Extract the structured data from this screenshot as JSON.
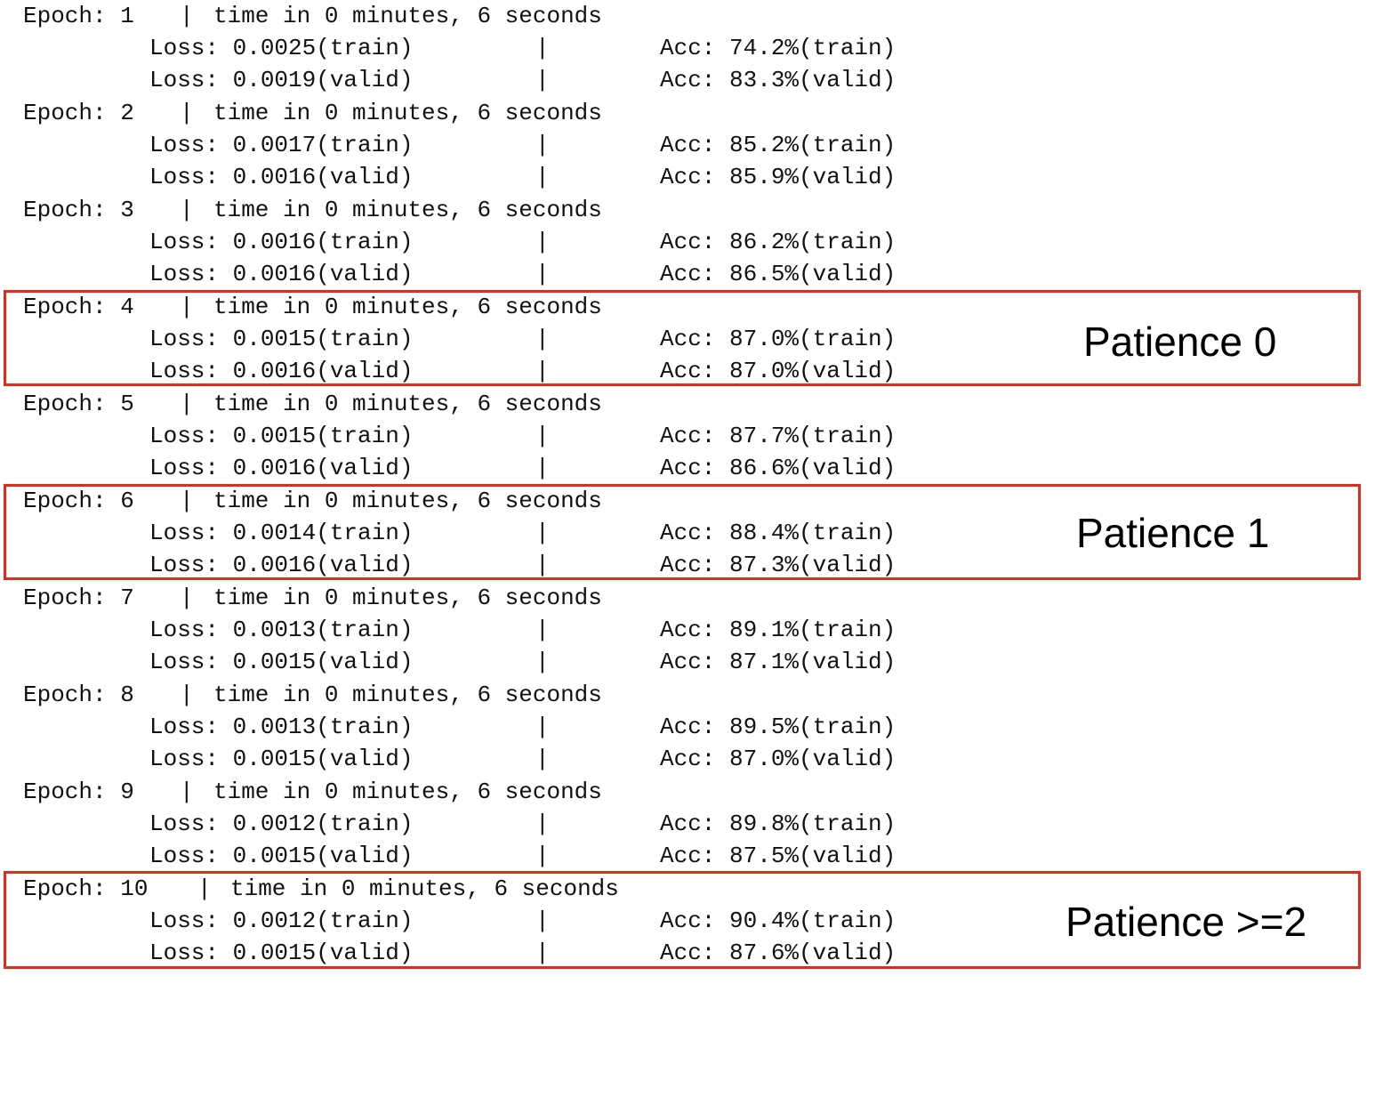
{
  "log": {
    "epochs": [
      {
        "epoch_line": "Epoch: 1",
        "time": "time in 0 minutes, 6 seconds",
        "loss_train": "Loss: 0.0025(train)",
        "acc_train": "Acc: 74.2%(train)",
        "loss_valid": "Loss: 0.0019(valid)",
        "acc_valid": "Acc: 83.3%(valid)"
      },
      {
        "epoch_line": "Epoch: 2",
        "time": "time in 0 minutes, 6 seconds",
        "loss_train": "Loss: 0.0017(train)",
        "acc_train": "Acc: 85.2%(train)",
        "loss_valid": "Loss: 0.0016(valid)",
        "acc_valid": "Acc: 85.9%(valid)"
      },
      {
        "epoch_line": "Epoch: 3",
        "time": "time in 0 minutes, 6 seconds",
        "loss_train": "Loss: 0.0016(train)",
        "acc_train": "Acc: 86.2%(train)",
        "loss_valid": "Loss: 0.0016(valid)",
        "acc_valid": "Acc: 86.5%(valid)"
      },
      {
        "epoch_line": "Epoch: 4",
        "time": "time in 0 minutes, 6 seconds",
        "loss_train": "Loss: 0.0015(train)",
        "acc_train": "Acc: 87.0%(train)",
        "loss_valid": "Loss: 0.0016(valid)",
        "acc_valid": "Acc: 87.0%(valid)"
      },
      {
        "epoch_line": "Epoch: 5",
        "time": "time in 0 minutes, 6 seconds",
        "loss_train": "Loss: 0.0015(train)",
        "acc_train": "Acc: 87.7%(train)",
        "loss_valid": "Loss: 0.0016(valid)",
        "acc_valid": "Acc: 86.6%(valid)"
      },
      {
        "epoch_line": "Epoch: 6",
        "time": "time in 0 minutes, 6 seconds",
        "loss_train": "Loss: 0.0014(train)",
        "acc_train": "Acc: 88.4%(train)",
        "loss_valid": "Loss: 0.0016(valid)",
        "acc_valid": "Acc: 87.3%(valid)"
      },
      {
        "epoch_line": "Epoch: 7",
        "time": "time in 0 minutes, 6 seconds",
        "loss_train": "Loss: 0.0013(train)",
        "acc_train": "Acc: 89.1%(train)",
        "loss_valid": "Loss: 0.0015(valid)",
        "acc_valid": "Acc: 87.1%(valid)"
      },
      {
        "epoch_line": "Epoch: 8",
        "time": "time in 0 minutes, 6 seconds",
        "loss_train": "Loss: 0.0013(train)",
        "acc_train": "Acc: 89.5%(train)",
        "loss_valid": "Loss: 0.0015(valid)",
        "acc_valid": "Acc: 87.0%(valid)"
      },
      {
        "epoch_line": "Epoch: 9",
        "time": "time in 0 minutes, 6 seconds",
        "loss_train": "Loss: 0.0012(train)",
        "acc_train": "Acc: 89.8%(train)",
        "loss_valid": "Loss: 0.0015(valid)",
        "acc_valid": "Acc: 87.5%(valid)"
      },
      {
        "epoch_line": "Epoch: 10",
        "time": "time in 0 minutes, 6 seconds",
        "loss_train": "Loss: 0.0012(train)",
        "acc_train": "Acc: 90.4%(train)",
        "loss_valid": "Loss: 0.0015(valid)",
        "acc_valid": "Acc: 87.6%(valid)"
      }
    ],
    "separator": "|"
  },
  "annotations": {
    "patience_0": "Patience 0",
    "patience_1": "Patience 1",
    "patience_2": "Patience >=2",
    "box_color": "#c0392b"
  }
}
